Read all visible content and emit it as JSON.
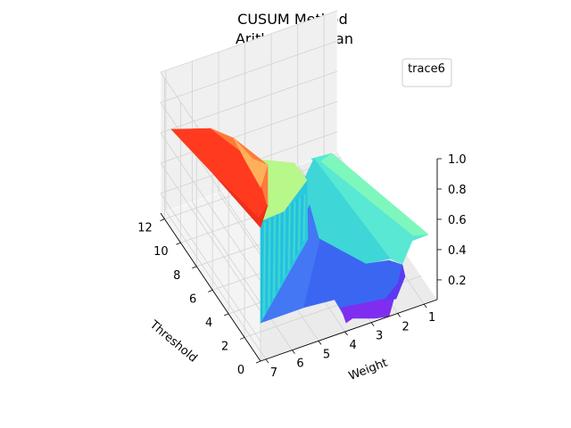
{
  "chart_data": {
    "type": "surface3d",
    "title_line1": "CUSUM Method",
    "title_line2": "Arithmetic Mean",
    "xlabel": "Weight",
    "ylabel": "Threshold",
    "zlabel": "",
    "xlim": [
      0.5,
      7.2
    ],
    "ylim": [
      0,
      12.5
    ],
    "zlim": [
      0.07,
      1.0
    ],
    "x_ticks": [
      "1",
      "2",
      "3",
      "4",
      "5",
      "6",
      "7"
    ],
    "y_ticks": [
      "0",
      "2",
      "4",
      "6",
      "8",
      "10",
      "12"
    ],
    "z_ticks": [
      "0.2",
      "0.4",
      "0.6",
      "0.8",
      "1.0"
    ],
    "colormap": "rainbow",
    "legend": {
      "entries": [
        "trace6"
      ],
      "position": "top-right"
    },
    "grid": true
  }
}
